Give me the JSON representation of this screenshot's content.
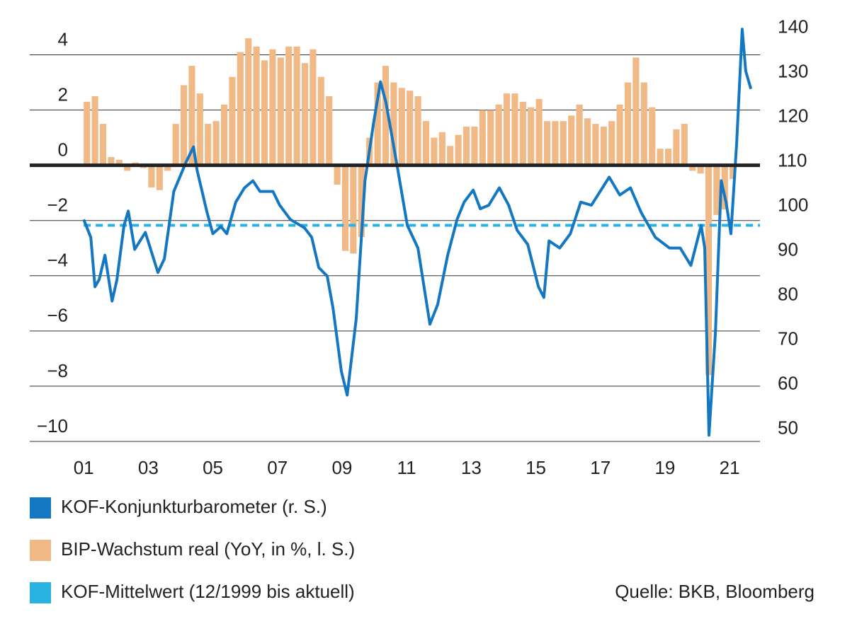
{
  "chart_data": {
    "type": "bar_line",
    "xlim": [
      1999.33,
      2021.94
    ],
    "xticks": [
      {
        "value": 2001,
        "label": "01"
      },
      {
        "value": 2003,
        "label": "03"
      },
      {
        "value": 2005,
        "label": "05"
      },
      {
        "value": 2007,
        "label": "07"
      },
      {
        "value": 2009,
        "label": "09"
      },
      {
        "value": 2011,
        "label": "11"
      },
      {
        "value": 2013,
        "label": "13"
      },
      {
        "value": 2015,
        "label": "15"
      },
      {
        "value": 2017,
        "label": "17"
      },
      {
        "value": 2019,
        "label": "19"
      },
      {
        "value": 2021,
        "label": "21"
      }
    ],
    "ylim": [
      -10,
      4.96
    ],
    "yticks": [
      4,
      2,
      0,
      {
        "value": -2,
        "label": "−2"
      },
      {
        "value": -4,
        "label": "−4"
      },
      {
        "value": -6,
        "label": "−6"
      },
      {
        "value": -8,
        "label": "−8"
      },
      {
        "value": -10,
        "label": "−10"
      }
    ],
    "y2lim": [
      48,
      140.7
    ],
    "y2ticks": [
      140,
      130,
      120,
      110,
      100,
      90,
      80,
      70,
      60,
      50
    ],
    "grid": true,
    "series": [
      {
        "name": "KOF-Konjunkturbarometer (r. S.)",
        "type": "line",
        "axis": "y2",
        "color": "#1477c2",
        "x": [
          2001.0,
          2001.22,
          2001.35,
          2001.48,
          2001.66,
          2001.88,
          2002.03,
          2002.25,
          2002.38,
          2002.58,
          2002.91,
          2003.3,
          2003.5,
          2003.79,
          2004.16,
          2004.4,
          2004.51,
          2004.82,
          2005.0,
          2005.25,
          2005.43,
          2005.71,
          2005.98,
          2006.24,
          2006.46,
          2006.86,
          2007.07,
          2007.4,
          2007.84,
          2008.06,
          2008.28,
          2008.54,
          2008.72,
          2008.98,
          2009.16,
          2009.44,
          2009.71,
          2009.97,
          2010.19,
          2010.36,
          2010.69,
          2011.02,
          2011.35,
          2011.72,
          2011.96,
          2012.27,
          2012.56,
          2012.78,
          2013.06,
          2013.28,
          2013.54,
          2013.87,
          2014.16,
          2014.42,
          2014.75,
          2015.08,
          2015.25,
          2015.41,
          2015.74,
          2016.07,
          2016.39,
          2016.72,
          2017.27,
          2017.6,
          2017.93,
          2018.26,
          2018.7,
          2019.14,
          2019.47,
          2019.8,
          2020.12,
          2020.23,
          2020.36,
          2020.56,
          2020.74,
          2020.89,
          2021.04,
          2021.22,
          2021.39,
          2021.5,
          2021.66
        ],
        "values": [
          97.8,
          93.8,
          82.7,
          84.3,
          89.8,
          79.5,
          84.3,
          96.5,
          99.7,
          91.1,
          94.9,
          85.9,
          89.0,
          104.1,
          110.5,
          114.1,
          108.9,
          99.4,
          94.6,
          96.2,
          94.6,
          101.7,
          104.9,
          106.5,
          104.1,
          104.1,
          101.0,
          97.8,
          95.9,
          93.8,
          87.0,
          85.1,
          77.9,
          63.7,
          58.4,
          75.6,
          106.5,
          119.2,
          128.7,
          124.0,
          110.5,
          96.5,
          91.4,
          74.3,
          78.7,
          89.8,
          97.8,
          101.7,
          104.4,
          100.2,
          101.0,
          104.9,
          101.0,
          95.4,
          92.2,
          82.7,
          80.3,
          93.0,
          91.4,
          94.6,
          101.7,
          101.0,
          107.3,
          103.3,
          104.9,
          99.4,
          93.8,
          91.4,
          91.4,
          87.5,
          96.5,
          91.4,
          49.4,
          72.4,
          106.5,
          101.7,
          94.6,
          115.2,
          140.5,
          131.1,
          127.1
        ]
      },
      {
        "name": "BIP-Wachstum real (YoY, in %, l. S.)",
        "type": "bar",
        "axis": "y",
        "color": "#f0b985",
        "x": [
          2001.0,
          2001.25,
          2001.5,
          2001.75,
          2002.0,
          2002.25,
          2002.5,
          2002.75,
          2003.0,
          2003.25,
          2003.5,
          2003.75,
          2004.0,
          2004.25,
          2004.5,
          2004.75,
          2005.0,
          2005.25,
          2005.5,
          2005.75,
          2006.0,
          2006.25,
          2006.5,
          2006.75,
          2007.0,
          2007.25,
          2007.5,
          2007.75,
          2008.0,
          2008.25,
          2008.5,
          2008.75,
          2009.0,
          2009.25,
          2009.5,
          2009.75,
          2010.0,
          2010.25,
          2010.5,
          2010.75,
          2011.0,
          2011.25,
          2011.5,
          2011.75,
          2012.0,
          2012.25,
          2012.5,
          2012.75,
          2013.0,
          2013.25,
          2013.5,
          2013.75,
          2014.0,
          2014.25,
          2014.5,
          2014.75,
          2015.0,
          2015.25,
          2015.5,
          2015.75,
          2016.0,
          2016.25,
          2016.5,
          2016.75,
          2017.0,
          2017.25,
          2017.5,
          2017.75,
          2018.0,
          2018.25,
          2018.5,
          2018.75,
          2019.0,
          2019.25,
          2019.5,
          2019.75,
          2020.0,
          2020.25,
          2020.5,
          2020.75,
          2021.0
        ],
        "values": [
          2.3,
          2.5,
          1.5,
          0.3,
          0.2,
          -0.2,
          0.1,
          -0.1,
          -0.8,
          -0.9,
          -0.2,
          1.5,
          2.9,
          3.6,
          2.6,
          1.5,
          1.6,
          2.2,
          3.2,
          4.1,
          4.6,
          4.3,
          3.8,
          4.2,
          3.9,
          4.3,
          4.3,
          3.7,
          4.2,
          3.2,
          2.5,
          -0.7,
          -3.1,
          -3.2,
          -2.6,
          1.0,
          3.0,
          3.6,
          3.0,
          2.8,
          2.7,
          2.5,
          1.6,
          1.0,
          1.2,
          0.7,
          1.1,
          1.4,
          1.4,
          2.0,
          2.0,
          2.2,
          2.6,
          2.6,
          2.3,
          2.1,
          2.4,
          1.6,
          1.6,
          1.6,
          1.8,
          2.2,
          1.7,
          1.5,
          1.4,
          1.6,
          2.2,
          3.0,
          3.9,
          3.0,
          2.1,
          0.6,
          0.6,
          1.3,
          1.5,
          -0.2,
          -0.3,
          -7.6,
          -1.8,
          -1.6,
          -0.5
        ]
      },
      {
        "name": "KOF-Mittelwert (12/1999 bis aktuell)",
        "type": "hline",
        "axis": "y2",
        "color": "#29b3e3",
        "value": 96.5
      }
    ],
    "source": "Quelle: BKB, Bloomberg"
  }
}
